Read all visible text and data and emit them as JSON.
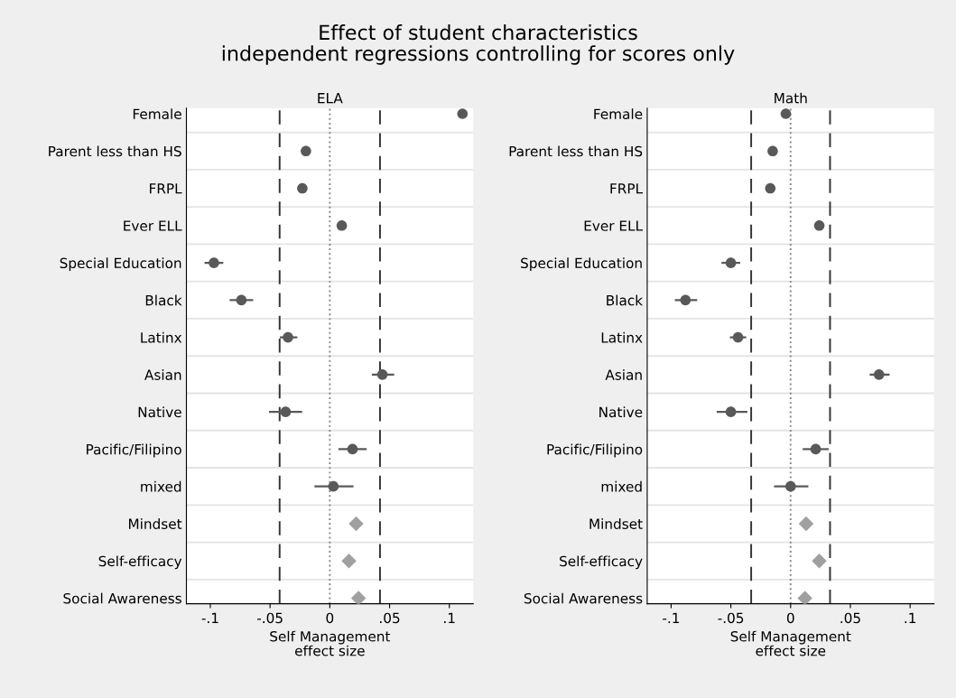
{
  "chart_data": [
    {
      "type": "scatter",
      "title": "Effect of student characteristics\nindependent regressions controlling for scores only",
      "subtitle": "ELA",
      "orientation": "horizontal",
      "categories": [
        "Female",
        "Parent less than HS",
        "FRPL",
        "Ever ELL",
        "Special Education",
        "Black",
        "Latinx",
        "Asian",
        "Native",
        "Pacific/Filipino",
        "mixed",
        "Mindset",
        "Self-efficacy",
        "Social Awareness"
      ],
      "series": [
        {
          "color": "#595959",
          "marker": "circle",
          "values": [
            0.111,
            -0.02,
            -0.023,
            0.01,
            -0.097,
            -0.074,
            -0.035,
            0.044,
            -0.037,
            0.019,
            0.003,
            null,
            null,
            null
          ],
          "errors": [
            null,
            null,
            null,
            null,
            [
              -0.104,
              -0.09
            ],
            [
              -0.083,
              -0.065
            ],
            [
              -0.041,
              -0.028
            ],
            [
              0.036,
              0.053
            ],
            [
              -0.05,
              -0.024
            ],
            [
              0.008,
              0.03
            ],
            [
              -0.012,
              0.019
            ],
            null,
            null,
            null
          ]
        },
        {
          "color": "#a0a0a0",
          "marker": "diamond",
          "values": [
            null,
            null,
            null,
            null,
            null,
            null,
            null,
            null,
            null,
            null,
            null,
            0.022,
            0.016,
            0.024
          ]
        }
      ],
      "xlim": [
        -0.12,
        0.12
      ],
      "xticks": [
        {
          "value": -0.1,
          "label": "-.1"
        },
        {
          "value": -0.05,
          "label": "-.05"
        },
        0,
        {
          "value": 0.05,
          "label": ".05"
        },
        {
          "value": 0.1,
          "label": ".1"
        }
      ],
      "xlabel": "Self Management\neffect size",
      "grid": "y",
      "ref_lines": [
        {
          "axis": "x",
          "value": -0.042,
          "line_style": "dashed",
          "color": "#333333"
        },
        {
          "axis": "x",
          "value": 0,
          "line_style": "dotted",
          "color": "#888888"
        },
        {
          "axis": "x",
          "value": 0.042,
          "line_style": "dashed",
          "color": "#333333"
        }
      ]
    },
    {
      "type": "scatter",
      "subtitle": "Math",
      "orientation": "horizontal",
      "categories": [
        "Female",
        "Parent less than HS",
        "FRPL",
        "Ever ELL",
        "Special Education",
        "Black",
        "Latinx",
        "Asian",
        "Native",
        "Pacific/Filipino",
        "mixed",
        "Mindset",
        "Self-efficacy",
        "Social Awareness"
      ],
      "series": [
        {
          "color": "#595959",
          "marker": "circle",
          "values": [
            -0.004,
            -0.015,
            -0.017,
            0.024,
            -0.05,
            -0.088,
            -0.044,
            0.074,
            -0.05,
            0.021,
            0.0,
            null,
            null,
            null
          ],
          "errors": [
            null,
            null,
            null,
            null,
            [
              -0.057,
              -0.043
            ],
            [
              -0.096,
              -0.079
            ],
            [
              -0.05,
              -0.038
            ],
            [
              0.067,
              0.082
            ],
            [
              -0.061,
              -0.037
            ],
            [
              0.011,
              0.031
            ],
            [
              -0.013,
              0.014
            ],
            null,
            null,
            null
          ]
        },
        {
          "color": "#a0a0a0",
          "marker": "diamond",
          "values": [
            null,
            null,
            null,
            null,
            null,
            null,
            null,
            null,
            null,
            null,
            null,
            0.013,
            0.024,
            0.012
          ]
        }
      ],
      "xlim": [
        -0.12,
        0.12
      ],
      "xticks": [
        {
          "value": -0.1,
          "label": "-.1"
        },
        {
          "value": -0.05,
          "label": "-.05"
        },
        0,
        {
          "value": 0.05,
          "label": ".05"
        },
        {
          "value": 0.1,
          "label": ".1"
        }
      ],
      "xlabel": "Self Management\neffect size",
      "grid": "y",
      "ref_lines": [
        {
          "axis": "x",
          "value": -0.033,
          "line_style": "dashed",
          "color": "#333333"
        },
        {
          "axis": "x",
          "value": 0,
          "line_style": "dotted",
          "color": "#888888"
        },
        {
          "axis": "x",
          "value": 0.033,
          "line_style": "dashed",
          "color": "#333333"
        }
      ]
    }
  ]
}
